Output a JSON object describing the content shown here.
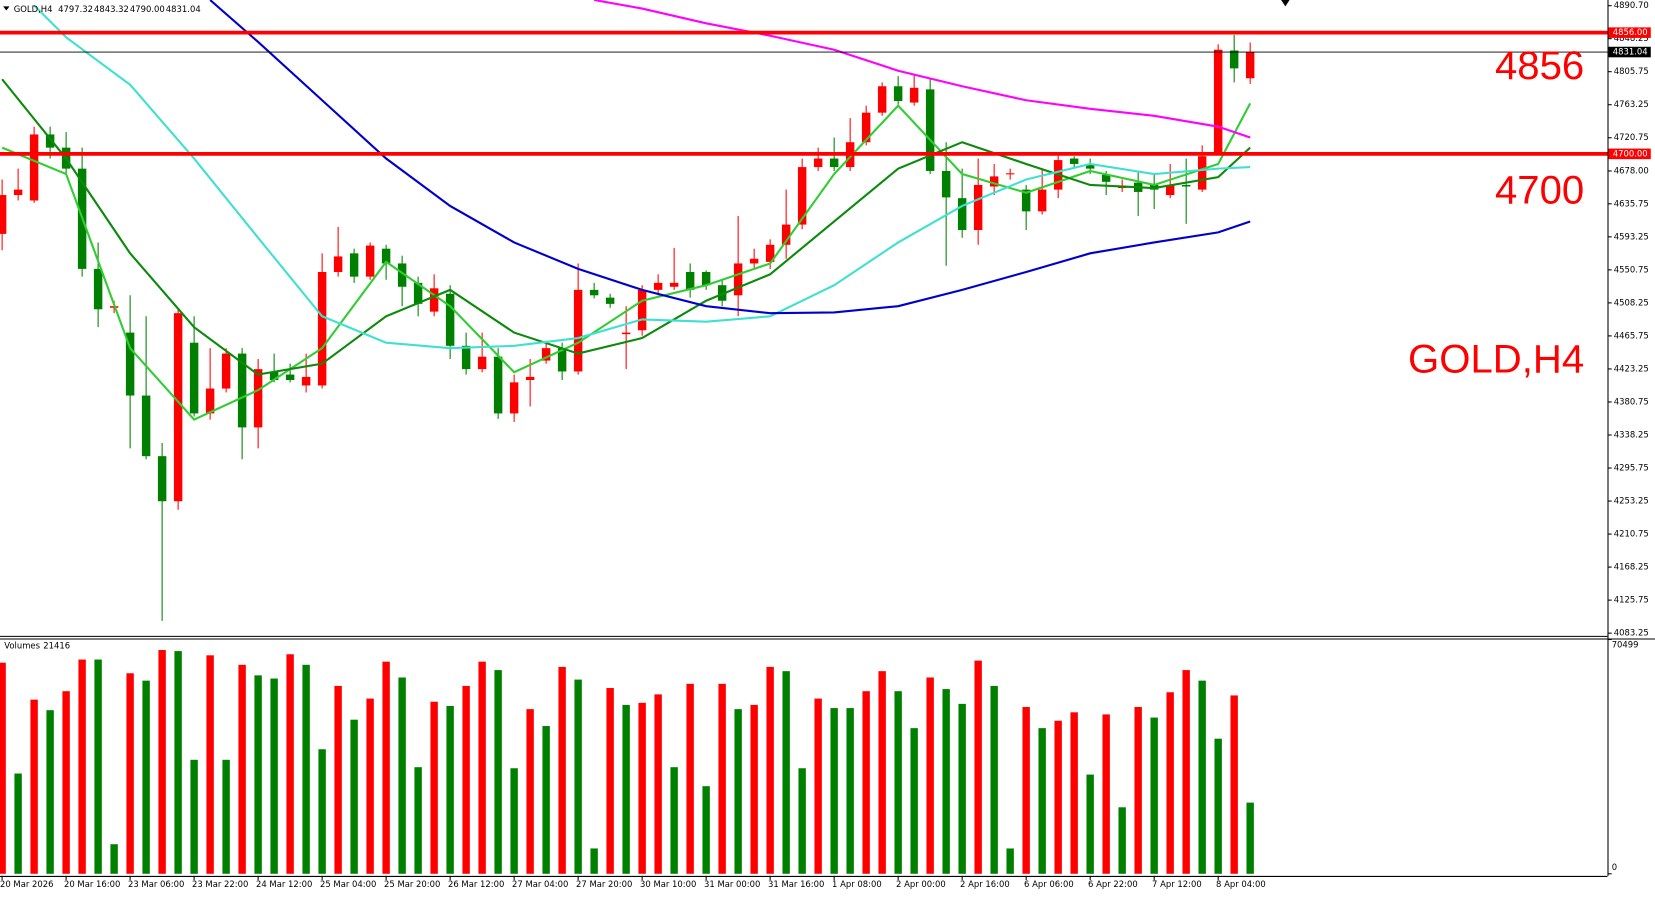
{
  "chart_data": {
    "type": "candlestick",
    "header": {
      "symbol": "GOLD,H4",
      "prices": [
        4797.32,
        4843.32,
        {
          "value": 4790,
          "label": "4790.00"
        },
        4831.04
      ]
    },
    "categories": [
      "20 Mar 2026",
      null,
      null,
      null,
      "20 Mar 16:00",
      null,
      null,
      null,
      "23 Mar 06:00",
      null,
      null,
      null,
      "23 Mar 22:00",
      null,
      null,
      null,
      "24 Mar 12:00",
      null,
      null,
      null,
      "25 Mar 04:00",
      null,
      null,
      null,
      "25 Mar 20:00",
      null,
      null,
      null,
      "26 Mar 12:00",
      null,
      null,
      null,
      "27 Mar 04:00",
      null,
      null,
      null,
      "27 Mar 20:00",
      null,
      null,
      null,
      "30 Mar 10:00",
      null,
      null,
      null,
      "31 Mar 00:00",
      null,
      null,
      null,
      "31 Mar 16:00",
      null,
      null,
      null,
      "1 Apr 08:00",
      null,
      null,
      null,
      "2 Apr 00:00",
      null,
      null,
      null,
      "2 Apr 16:00",
      null,
      null,
      null,
      "6 Apr 06:00",
      null,
      null,
      null,
      "6 Apr 22:00",
      null,
      null,
      null,
      "7 Apr 12:00",
      null,
      null,
      null,
      "8 Apr 04:00",
      null,
      null
    ],
    "open": [
      4597,
      4647,
      4640,
      4725,
      4708,
      4681,
      4552,
      4502,
      4470,
      4389,
      4311,
      4253,
      4457,
      4366,
      4398,
      4443,
      4348,
      4420,
      4416,
      4402,
      4402,
      4548,
      4572,
      4542,
      4578,
      4559,
      4534,
      4497,
      4520,
      4453,
      4423,
      4439,
      4366,
      4409,
      4434,
      4450,
      4420,
      4525,
      4515,
      4468,
      4473,
      4525,
      4529,
      4548,
      4548,
      4531,
      4518,
      4559,
      4561,
      4583,
      4609,
      4683,
      4694,
      4683,
      4715,
      4753,
      4787,
      4766,
      4783,
      4678,
      4643,
      4602,
      4658,
      4674,
      4654,
      4626,
      4654,
      4694,
      4687,
      4673,
      4656,
      4663,
      4660,
      4647,
      4660,
      4654,
      4701,
      4833,
      4797.32
    ],
    "high": [
      4667,
      4681,
      4735,
      4735,
      4728,
      4708,
      4586,
      4511,
      4518,
      4491,
      4328,
      4500,
      4491,
      4450,
      4450,
      4450,
      4436,
      4443,
      4430,
      4443,
      4572,
      4606,
      4578,
      4586,
      4583,
      4569,
      4542,
      4545,
      4531,
      4470,
      4470,
      4450,
      4416,
      4436,
      4457,
      4457,
      4559,
      4534,
      4520,
      4504,
      4531,
      4545,
      4579,
      4559,
      4550,
      4538,
      4620,
      4578,
      4590,
      4654,
      4694,
      4708,
      4721,
      4746,
      4762,
      4792,
      4800,
      4803,
      4796,
      4715,
      4681,
      4694,
      4687,
      4681,
      4660,
      4681,
      4701,
      4697,
      4694,
      4678,
      4667,
      4678,
      4674,
      4687,
      4694,
      4711,
      4841,
      4853,
      4843.32
    ],
    "low": [
      4576,
      4640,
      4637,
      4694,
      4674,
      4542,
      4477,
      4495,
      4321,
      4307,
      4099,
      4242,
      4362,
      4358,
      4393,
      4307,
      4321,
      4406,
      4406,
      4393,
      4398,
      4542,
      4534,
      4538,
      4538,
      4504,
      4491,
      4491,
      4436,
      4416,
      4419,
      4359,
      4355,
      4375,
      4430,
      4409,
      4416,
      4514,
      4502,
      4423,
      4466,
      4518,
      4525,
      4515,
      4525,
      4504,
      4491,
      4552,
      4552,
      4565,
      4603,
      4678,
      4678,
      4678,
      4711,
      4749,
      4762,
      4762,
      4674,
      4556,
      4592,
      4583,
      4647,
      4667,
      4602,
      4622,
      4643,
      4681,
      4674,
      4647,
      4651,
      4620,
      4629,
      4643,
      4610,
      4651,
      4698,
      4792,
      4790
    ],
    "close": [
      4647,
      4654,
      4725,
      4708,
      4681,
      4552,
      4500,
      4504,
      4389,
      4311,
      4253,
      4495,
      4366,
      4398,
      4443,
      4348,
      4423,
      4409,
      4409,
      4413,
      4548,
      4568,
      4542,
      4582,
      4559,
      4529,
      4507,
      4527,
      4453,
      4423,
      4439,
      4366,
      4406,
      4413,
      4450,
      4420,
      4525,
      4518,
      4507,
      4470,
      4525,
      4534,
      4534,
      4525,
      4531,
      4511,
      4559,
      4565,
      4583,
      4609,
      4683,
      4694,
      4683,
      4715,
      4753,
      4787,
      4768,
      4785,
      4678,
      4644,
      4602,
      4660,
      4671,
      4675,
      4626,
      4654,
      4692,
      4687,
      4681,
      4664,
      4659,
      4651,
      4654,
      4660,
      4658,
      4697,
      4834,
      4810,
      4831.04
    ],
    "up_color": "#ff0000",
    "down_color": "#008000",
    "series": [
      {
        "color": "#32cd32",
        "x": [
          0,
          4,
          8,
          12,
          16,
          20,
          24,
          28,
          32,
          36,
          40,
          44,
          48,
          52,
          56,
          60,
          64,
          68,
          72,
          76,
          78
        ],
        "values": [
          4708,
          4674,
          4450,
          4358,
          4396,
          4450,
          4561,
          4504,
          4419,
          4457,
          4511,
          4531,
          4559,
          4674,
          4762,
          4674,
          4650,
          4678,
          4660,
          4687,
          4765
        ]
      },
      {
        "color": "#0b8a0b",
        "x": [
          0,
          4,
          8,
          12,
          16,
          20,
          24,
          28,
          32,
          36,
          40,
          44,
          48,
          52,
          56,
          60,
          64,
          68,
          72,
          76,
          78
        ],
        "values": [
          4796,
          4694,
          4572,
          4477,
          4416,
          4430,
          4491,
          4525,
          4470,
          4443,
          4463,
          4511,
          4545,
          4613,
          4681,
          4715,
          4687,
          4660,
          4656,
          4670,
          4708
        ]
      },
      {
        "color": "#40e0d0",
        "x": [
          2,
          4,
          8,
          12,
          16,
          20,
          24,
          28,
          32,
          36,
          40,
          44,
          48,
          52,
          56,
          60,
          64,
          68,
          72,
          76,
          78
        ],
        "values": [
          4891,
          4850,
          4789,
          4694,
          4592,
          4491,
          4457,
          4450,
          4453,
          4463,
          4487,
          4484,
          4491,
          4531,
          4586,
          4633,
          4667,
          4687,
          4674,
          4681,
          4683
        ]
      },
      {
        "color": "#0000cd",
        "x": [
          13,
          16,
          20,
          24,
          28,
          32,
          36,
          40,
          44,
          48,
          52,
          56,
          60,
          64,
          68,
          72,
          76,
          78
        ],
        "values": [
          4898,
          4844,
          4769,
          4694,
          4633,
          4586,
          4552,
          4525,
          4504,
          4495,
          4496,
          4504,
          4525,
          4548,
          4572,
          4586,
          4599,
          4613
        ]
      },
      {
        "color": "#ff00ff",
        "x": [
          37,
          40,
          44,
          48,
          52,
          56,
          60,
          64,
          68,
          72,
          76,
          78
        ],
        "values": [
          4898,
          4887,
          4868,
          4852,
          4834,
          4807,
          4787,
          4769,
          4758,
          4749,
          4735,
          4721
        ]
      }
    ],
    "ylim": [
      4080.5,
      4898
    ],
    "yticks": [
      {
        "value": 4890.7,
        "label": "4890.70"
      },
      4848.25,
      4805.75,
      4763.25,
      4720.75,
      {
        "value": 4678,
        "label": "4678.00"
      },
      4635.75,
      4593.25,
      4550.75,
      4508.25,
      4465.75,
      4423.25,
      4380.75,
      4338.25,
      4295.75,
      4253.25,
      4210.75,
      4168.25,
      4125.75,
      4083.25
    ],
    "levels": [
      {
        "value": 4856,
        "label": "4856.00",
        "color": "#ff0000"
      },
      {
        "value": 4700,
        "label": "4700.00",
        "color": "#ff0000"
      }
    ],
    "bid": 4831.04,
    "annotations": [
      "4856",
      "4700",
      "GOLD,H4"
    ],
    "volume_title": "Volumes",
    "volumes": [
      63520,
      30172,
      52404,
      49228,
      54945,
      64473,
      64473,
      8893,
      60344,
      58121,
      67331,
      67014,
      34301,
      65743,
      34301,
      62885,
      59709,
      58756,
      66061,
      62885,
      37477,
      56533,
      46370,
      52722,
      63838,
      59074,
      32078,
      51769,
      50498,
      56533,
      63838,
      61297,
      31760,
      49546,
      44464,
      62250,
      58438,
      7622,
      55898,
      50816,
      51451,
      53992,
      32078,
      57168,
      26361,
      57168,
      49546,
      50816,
      62250,
      60979,
      31760,
      52722,
      49863,
      49863,
      54945,
      60979,
      54945,
      43829,
      59074,
      55580,
      51134,
      64155,
      56533,
      7622,
      50181,
      43829,
      46052,
      48593,
      29854,
      47958,
      20009,
      50181,
      47005,
      54627,
      61297,
      58121,
      40653,
      53674,
      21416
    ],
    "vlim": [
      0,
      70499
    ],
    "vticks": [
      0,
      70499
    ]
  }
}
